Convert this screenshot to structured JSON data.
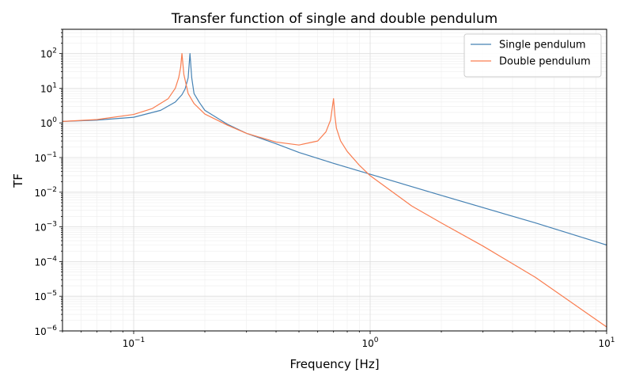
{
  "chart_data": {
    "type": "line",
    "title": "Transfer function of single and double pendulum",
    "xlabel": "Frequency [Hz]",
    "ylabel": "TF",
    "xscale": "log",
    "yscale": "log",
    "xlim": [
      0.05,
      10
    ],
    "ylim": [
      1e-06,
      500
    ],
    "grid": true,
    "legend_position": "top-right",
    "x_ticks": [
      {
        "value": 0.1,
        "base": "10",
        "exp": "−1"
      },
      {
        "value": 1,
        "base": "10",
        "exp": "0"
      },
      {
        "value": 10,
        "base": "10",
        "exp": "1"
      }
    ],
    "y_ticks": [
      {
        "value": 1e-06,
        "base": "10",
        "exp": "−6"
      },
      {
        "value": 1e-05,
        "base": "10",
        "exp": "−5"
      },
      {
        "value": 0.0001,
        "base": "10",
        "exp": "−4"
      },
      {
        "value": 0.001,
        "base": "10",
        "exp": "−3"
      },
      {
        "value": 0.01,
        "base": "10",
        "exp": "−2"
      },
      {
        "value": 0.1,
        "base": "10",
        "exp": "−1"
      },
      {
        "value": 1,
        "base": "10",
        "exp": "0"
      },
      {
        "value": 10,
        "base": "10",
        "exp": "1"
      },
      {
        "value": 100,
        "base": "10",
        "exp": "2"
      }
    ],
    "series": [
      {
        "name": "Single pendulum",
        "color": "#4682b4",
        "x": [
          0.05,
          0.07,
          0.1,
          0.13,
          0.15,
          0.16,
          0.165,
          0.17,
          0.173,
          0.176,
          0.18,
          0.19,
          0.2,
          0.25,
          0.3,
          0.4,
          0.5,
          0.7,
          1,
          2,
          5,
          10
        ],
        "y": [
          1.1,
          1.2,
          1.45,
          2.3,
          4.0,
          6.5,
          9.5,
          20,
          100,
          20,
          7,
          3.8,
          2.3,
          0.9,
          0.5,
          0.25,
          0.14,
          0.068,
          0.033,
          0.0081,
          0.0013,
          0.0003
        ]
      },
      {
        "name": "Double pendulum",
        "color": "#f97d50",
        "x": [
          0.05,
          0.07,
          0.1,
          0.12,
          0.14,
          0.15,
          0.155,
          0.158,
          0.16,
          0.163,
          0.17,
          0.18,
          0.2,
          0.25,
          0.3,
          0.4,
          0.5,
          0.6,
          0.65,
          0.68,
          0.7,
          0.71,
          0.72,
          0.75,
          0.8,
          0.9,
          1,
          1.5,
          2,
          3,
          5,
          10
        ],
        "y": [
          1.1,
          1.25,
          1.75,
          2.6,
          5.0,
          10,
          20,
          40,
          100,
          25,
          7,
          3.6,
          1.8,
          0.85,
          0.5,
          0.28,
          0.23,
          0.3,
          0.55,
          1.2,
          5,
          1.5,
          0.7,
          0.3,
          0.15,
          0.06,
          0.03,
          0.004,
          0.0013,
          0.00028,
          3.5e-05,
          1.3e-06
        ]
      }
    ]
  }
}
